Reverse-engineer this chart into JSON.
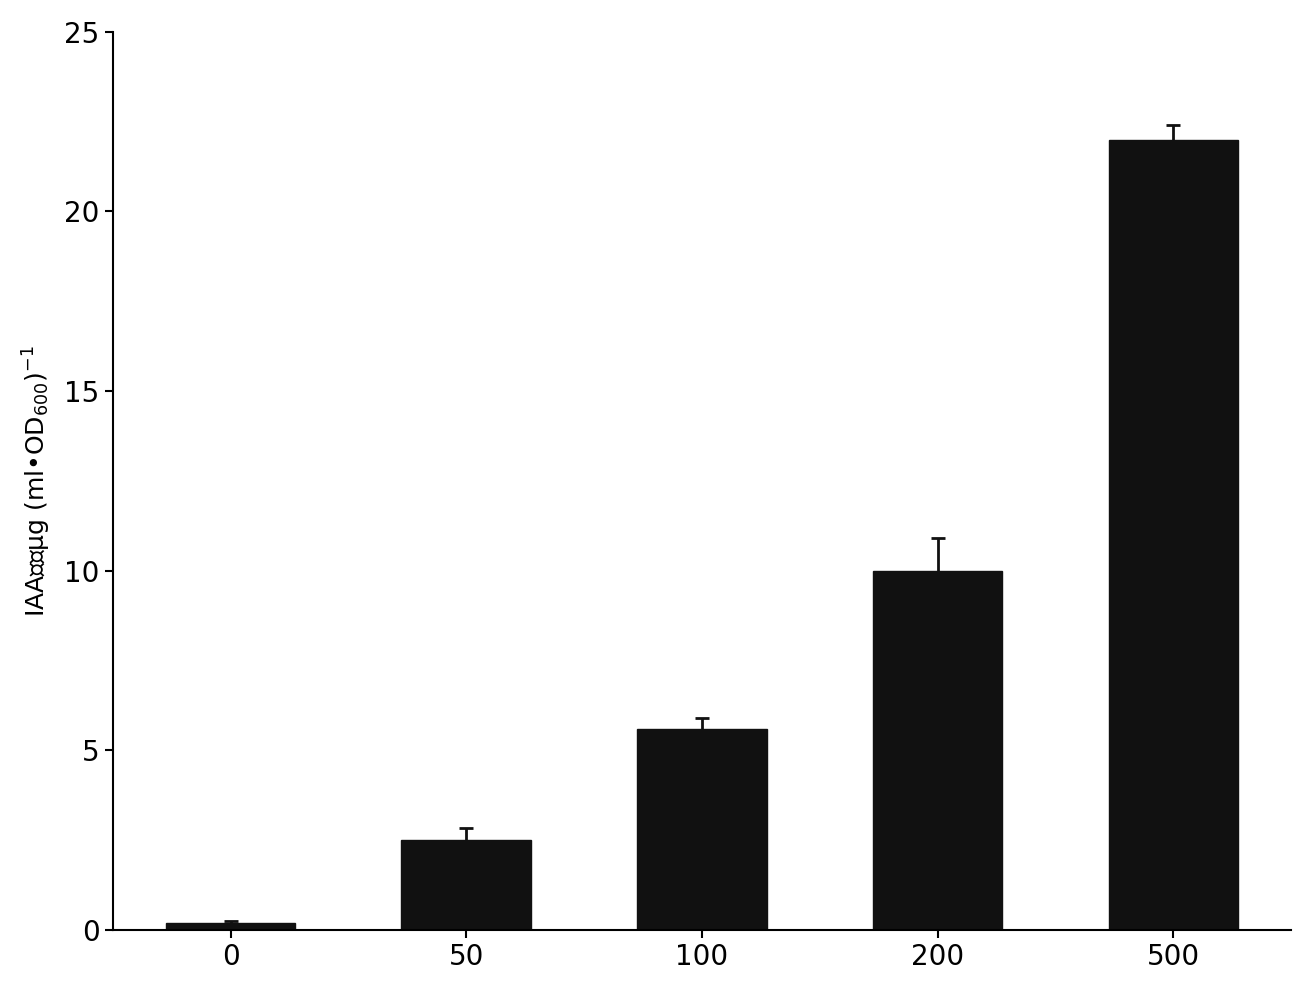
{
  "categories": [
    "0",
    "50",
    "100",
    "200",
    "500"
  ],
  "values": [
    0.2,
    2.5,
    5.6,
    10.0,
    22.0
  ],
  "errors": [
    0.05,
    0.35,
    0.3,
    0.9,
    0.4
  ],
  "bar_color": "#111111",
  "bar_width": 0.55,
  "ylim": [
    0,
    25
  ],
  "yticks": [
    0,
    5,
    10,
    15,
    20,
    25
  ],
  "background_color": "#ffffff",
  "bar_edge_color": "#111111",
  "error_capsize": 5,
  "error_color": "#111111",
  "tick_fontsize": 20,
  "ylabel_fontsize": 18
}
